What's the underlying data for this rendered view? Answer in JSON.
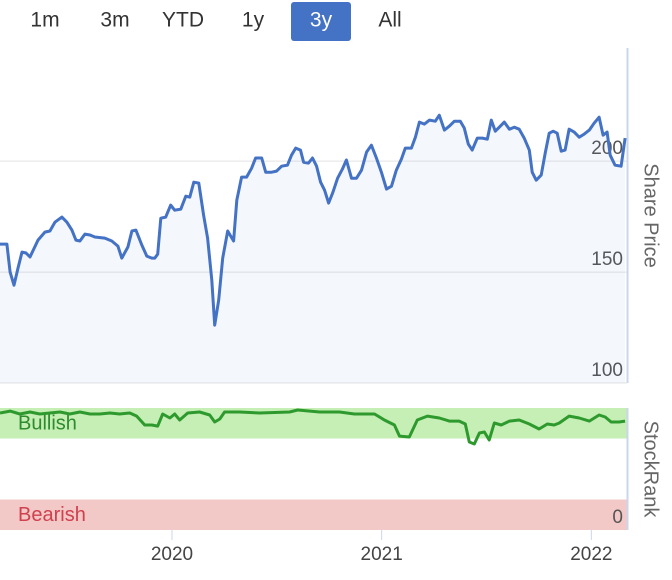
{
  "range_selector": {
    "options": [
      "1m",
      "3m",
      "YTD",
      "1y",
      "3y",
      "All"
    ],
    "selected": 4
  },
  "chart_data": [
    {
      "type": "line",
      "y_label": "Share Price",
      "color": "#4472c4",
      "xlim": [
        2019.18,
        2022.17
      ],
      "ylim": [
        100,
        251
      ],
      "yticks": [
        100,
        150,
        200
      ],
      "grid": true,
      "x": [
        2019.18,
        2019.213,
        2019.228,
        2019.247,
        2019.266,
        2019.285,
        2019.304,
        2019.323,
        2019.361,
        2019.394,
        2019.418,
        2019.442,
        2019.475,
        2019.499,
        2019.523,
        2019.542,
        2019.561,
        2019.585,
        2019.609,
        2019.632,
        2019.68,
        2019.713,
        2019.742,
        2019.761,
        2019.79,
        2019.809,
        2019.828,
        2019.856,
        2019.88,
        2019.904,
        2019.918,
        2019.932,
        2019.947,
        2019.97,
        2019.994,
        2020.013,
        2020.042,
        2020.066,
        2020.085,
        2020.104,
        2020.128,
        2020.151,
        2020.17,
        2020.19,
        2020.204,
        2020.223,
        2020.242,
        2020.266,
        2020.294,
        2020.309,
        2020.332,
        2020.356,
        2020.38,
        2020.399,
        2020.428,
        2020.447,
        2020.475,
        2020.499,
        2020.523,
        2020.551,
        2020.57,
        2020.59,
        2020.613,
        2020.628,
        2020.651,
        2020.67,
        2020.69,
        2020.709,
        2020.728,
        2020.747,
        2020.766,
        2020.79,
        2020.813,
        2020.832,
        2020.856,
        2020.88,
        2020.904,
        2020.928,
        2020.951,
        2020.975,
        2020.999,
        2021.023,
        2021.047,
        2021.07,
        2021.094,
        2021.113,
        2021.142,
        2021.161,
        2021.18,
        2021.204,
        2021.228,
        2021.256,
        2021.275,
        2021.299,
        2021.323,
        2021.347,
        2021.375,
        2021.394,
        2021.413,
        2021.432,
        2021.456,
        2021.48,
        2021.504,
        2021.523,
        2021.542,
        2021.561,
        2021.585,
        2021.609,
        2021.632,
        2021.656,
        2021.68,
        2021.704,
        2021.718,
        2021.737,
        2021.761,
        2021.78,
        2021.799,
        2021.818,
        2021.837,
        2021.856,
        2021.875,
        2021.894,
        2021.918,
        2021.942,
        2021.966,
        2021.99,
        2022.013,
        2022.037,
        2022.056,
        2022.075,
        2022.09,
        2022.113,
        2022.142,
        2022.161
      ],
      "values": [
        162.6,
        162.6,
        150.0,
        144.1,
        151.8,
        159.0,
        158.6,
        156.8,
        164.4,
        168.0,
        168.5,
        172.5,
        174.8,
        172.5,
        168.9,
        164.4,
        164.0,
        167.1,
        166.7,
        165.8,
        165.3,
        164.0,
        161.7,
        156.3,
        161.3,
        168.5,
        168.9,
        162.2,
        157.2,
        156.3,
        156.3,
        158.1,
        174.3,
        174.8,
        180.2,
        177.9,
        178.4,
        184.2,
        183.8,
        190.5,
        190.1,
        175.7,
        165.3,
        146.4,
        126.1,
        137.4,
        156.3,
        168.5,
        164.0,
        182.4,
        192.8,
        192.8,
        196.8,
        201.4,
        201.4,
        195.0,
        195.0,
        195.5,
        197.7,
        198.2,
        202.7,
        205.9,
        205.0,
        199.5,
        199.1,
        201.4,
        197.7,
        190.5,
        186.9,
        181.1,
        185.6,
        192.3,
        196.4,
        200.5,
        192.3,
        192.3,
        195.9,
        204.1,
        207.2,
        201.4,
        195.0,
        187.4,
        188.7,
        195.9,
        200.9,
        205.9,
        205.9,
        210.8,
        217.6,
        216.7,
        218.5,
        218.0,
        220.7,
        214.0,
        215.8,
        218.0,
        218.0,
        214.9,
        207.7,
        205.0,
        210.4,
        210.4,
        209.9,
        218.5,
        213.5,
        215.3,
        217.6,
        214.4,
        215.3,
        214.4,
        210.4,
        205.0,
        195.0,
        191.4,
        193.7,
        203.6,
        212.6,
        213.5,
        212.6,
        204.5,
        205.0,
        214.4,
        213.1,
        210.8,
        212.2,
        214.0,
        217.1,
        219.8,
        211.7,
        213.1,
        202.7,
        198.2,
        197.7,
        210.4
      ]
    },
    {
      "type": "line",
      "y_label": "StockRank",
      "color": "#2e9a2e",
      "xlim": [
        2019.18,
        2022.17
      ],
      "xticks": [
        2020,
        2021,
        2022
      ],
      "ylim": [
        0,
        100
      ],
      "yticks": [
        0
      ],
      "bands": [
        {
          "label": "Bullish",
          "from": 75,
          "to": 100,
          "color": "#c6efb6",
          "text_color": "#2e8b2e"
        },
        {
          "label": "Bearish",
          "from": 0,
          "to": 25,
          "color": "#f2c9c6",
          "text_color": "#d0404f"
        }
      ],
      "x": [
        2019.18,
        2019.228,
        2019.275,
        2019.323,
        2019.37,
        2019.418,
        2019.466,
        2019.513,
        2019.561,
        2019.609,
        2019.656,
        2019.704,
        2019.751,
        2019.799,
        2019.832,
        2019.87,
        2019.904,
        2019.932,
        2019.956,
        2019.99,
        2020.013,
        2020.037,
        2020.075,
        2020.132,
        2020.18,
        2020.204,
        2020.228,
        2020.251,
        2020.323,
        2020.418,
        2020.561,
        2020.599,
        2020.704,
        2020.799,
        2020.87,
        2020.966,
        2021.013,
        2021.061,
        2021.085,
        2021.132,
        2021.17,
        2021.218,
        2021.275,
        2021.323,
        2021.37,
        2021.399,
        2021.418,
        2021.442,
        2021.466,
        2021.49,
        2021.513,
        2021.537,
        2021.57,
        2021.609,
        2021.656,
        2021.704,
        2021.751,
        2021.79,
        2021.823,
        2021.847,
        2021.894,
        2021.942,
        2021.99,
        2022.037,
        2022.066,
        2022.094,
        2022.132,
        2022.161
      ],
      "values": [
        95.9,
        97.5,
        95.1,
        96.7,
        95.1,
        95.9,
        96.7,
        95.1,
        96.7,
        95.1,
        95.1,
        95.9,
        95.1,
        95.9,
        93.4,
        86.1,
        86.1,
        85.2,
        95.1,
        91.8,
        95.1,
        90.2,
        95.9,
        96.7,
        94.3,
        88.5,
        91.0,
        96.7,
        96.7,
        95.9,
        96.7,
        98.4,
        96.7,
        96.7,
        95.1,
        95.1,
        90.2,
        86.1,
        77.0,
        76.2,
        90.2,
        93.4,
        91.8,
        89.3,
        89.3,
        86.9,
        72.1,
        70.5,
        79.5,
        80.3,
        73.8,
        87.7,
        86.1,
        89.3,
        90.2,
        86.9,
        82.8,
        86.9,
        86.1,
        87.7,
        93.4,
        91.8,
        89.3,
        94.3,
        92.6,
        88.5,
        88.5,
        89.3
      ]
    }
  ]
}
